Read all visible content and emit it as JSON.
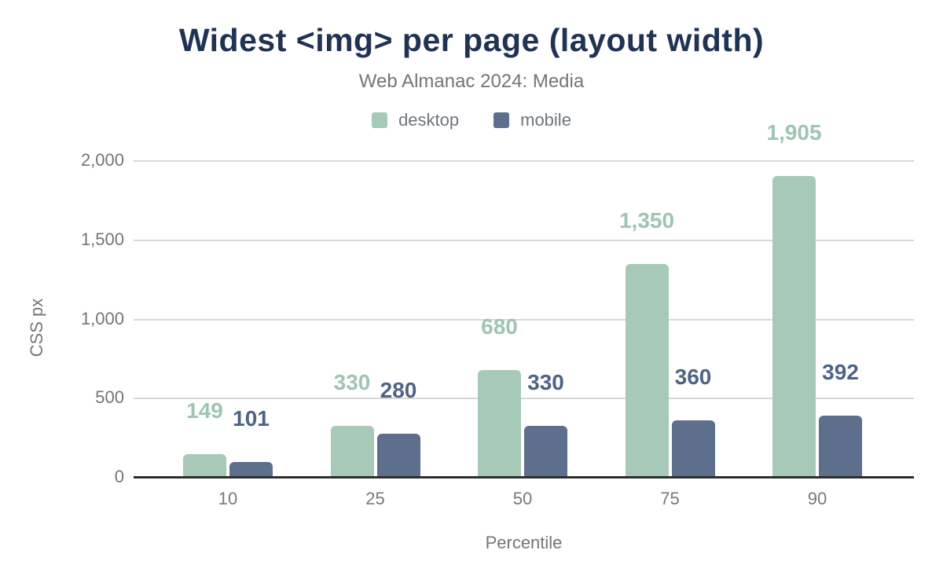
{
  "chart_data": {
    "type": "bar",
    "title": "Widest <img> per page (layout width)",
    "subtitle": "Web Almanac 2024: Media",
    "xlabel": "Percentile",
    "ylabel": "CSS px",
    "categories": [
      "10",
      "25",
      "50",
      "75",
      "90"
    ],
    "series": [
      {
        "name": "desktop",
        "color": "#a6c9b8",
        "label_color": "#9ec5b2",
        "values": [
          149,
          330,
          680,
          1350,
          1905
        ],
        "labels": [
          "149",
          "330",
          "680",
          "1,350",
          "1,905"
        ]
      },
      {
        "name": "mobile",
        "color": "#5d6f8c",
        "label_color": "#4f6386",
        "values": [
          101,
          280,
          330,
          360,
          392
        ],
        "labels": [
          "101",
          "280",
          "330",
          "360",
          "392"
        ]
      }
    ],
    "ylim": [
      0,
      2000
    ],
    "yticks": [
      {
        "value": 0,
        "label": "0"
      },
      {
        "value": 500,
        "label": "500"
      },
      {
        "value": 1000,
        "label": "1,000"
      },
      {
        "value": 1500,
        "label": "1,500"
      },
      {
        "value": 2000,
        "label": "2,000"
      }
    ],
    "legend_position": "top",
    "grid": true,
    "colors": {
      "title": "#203355",
      "subtitle": "#757575",
      "gridline": "#d8d8d8",
      "axis_line": "#2d2d2d",
      "tick_text": "#757575",
      "background": "#ffffff"
    }
  }
}
